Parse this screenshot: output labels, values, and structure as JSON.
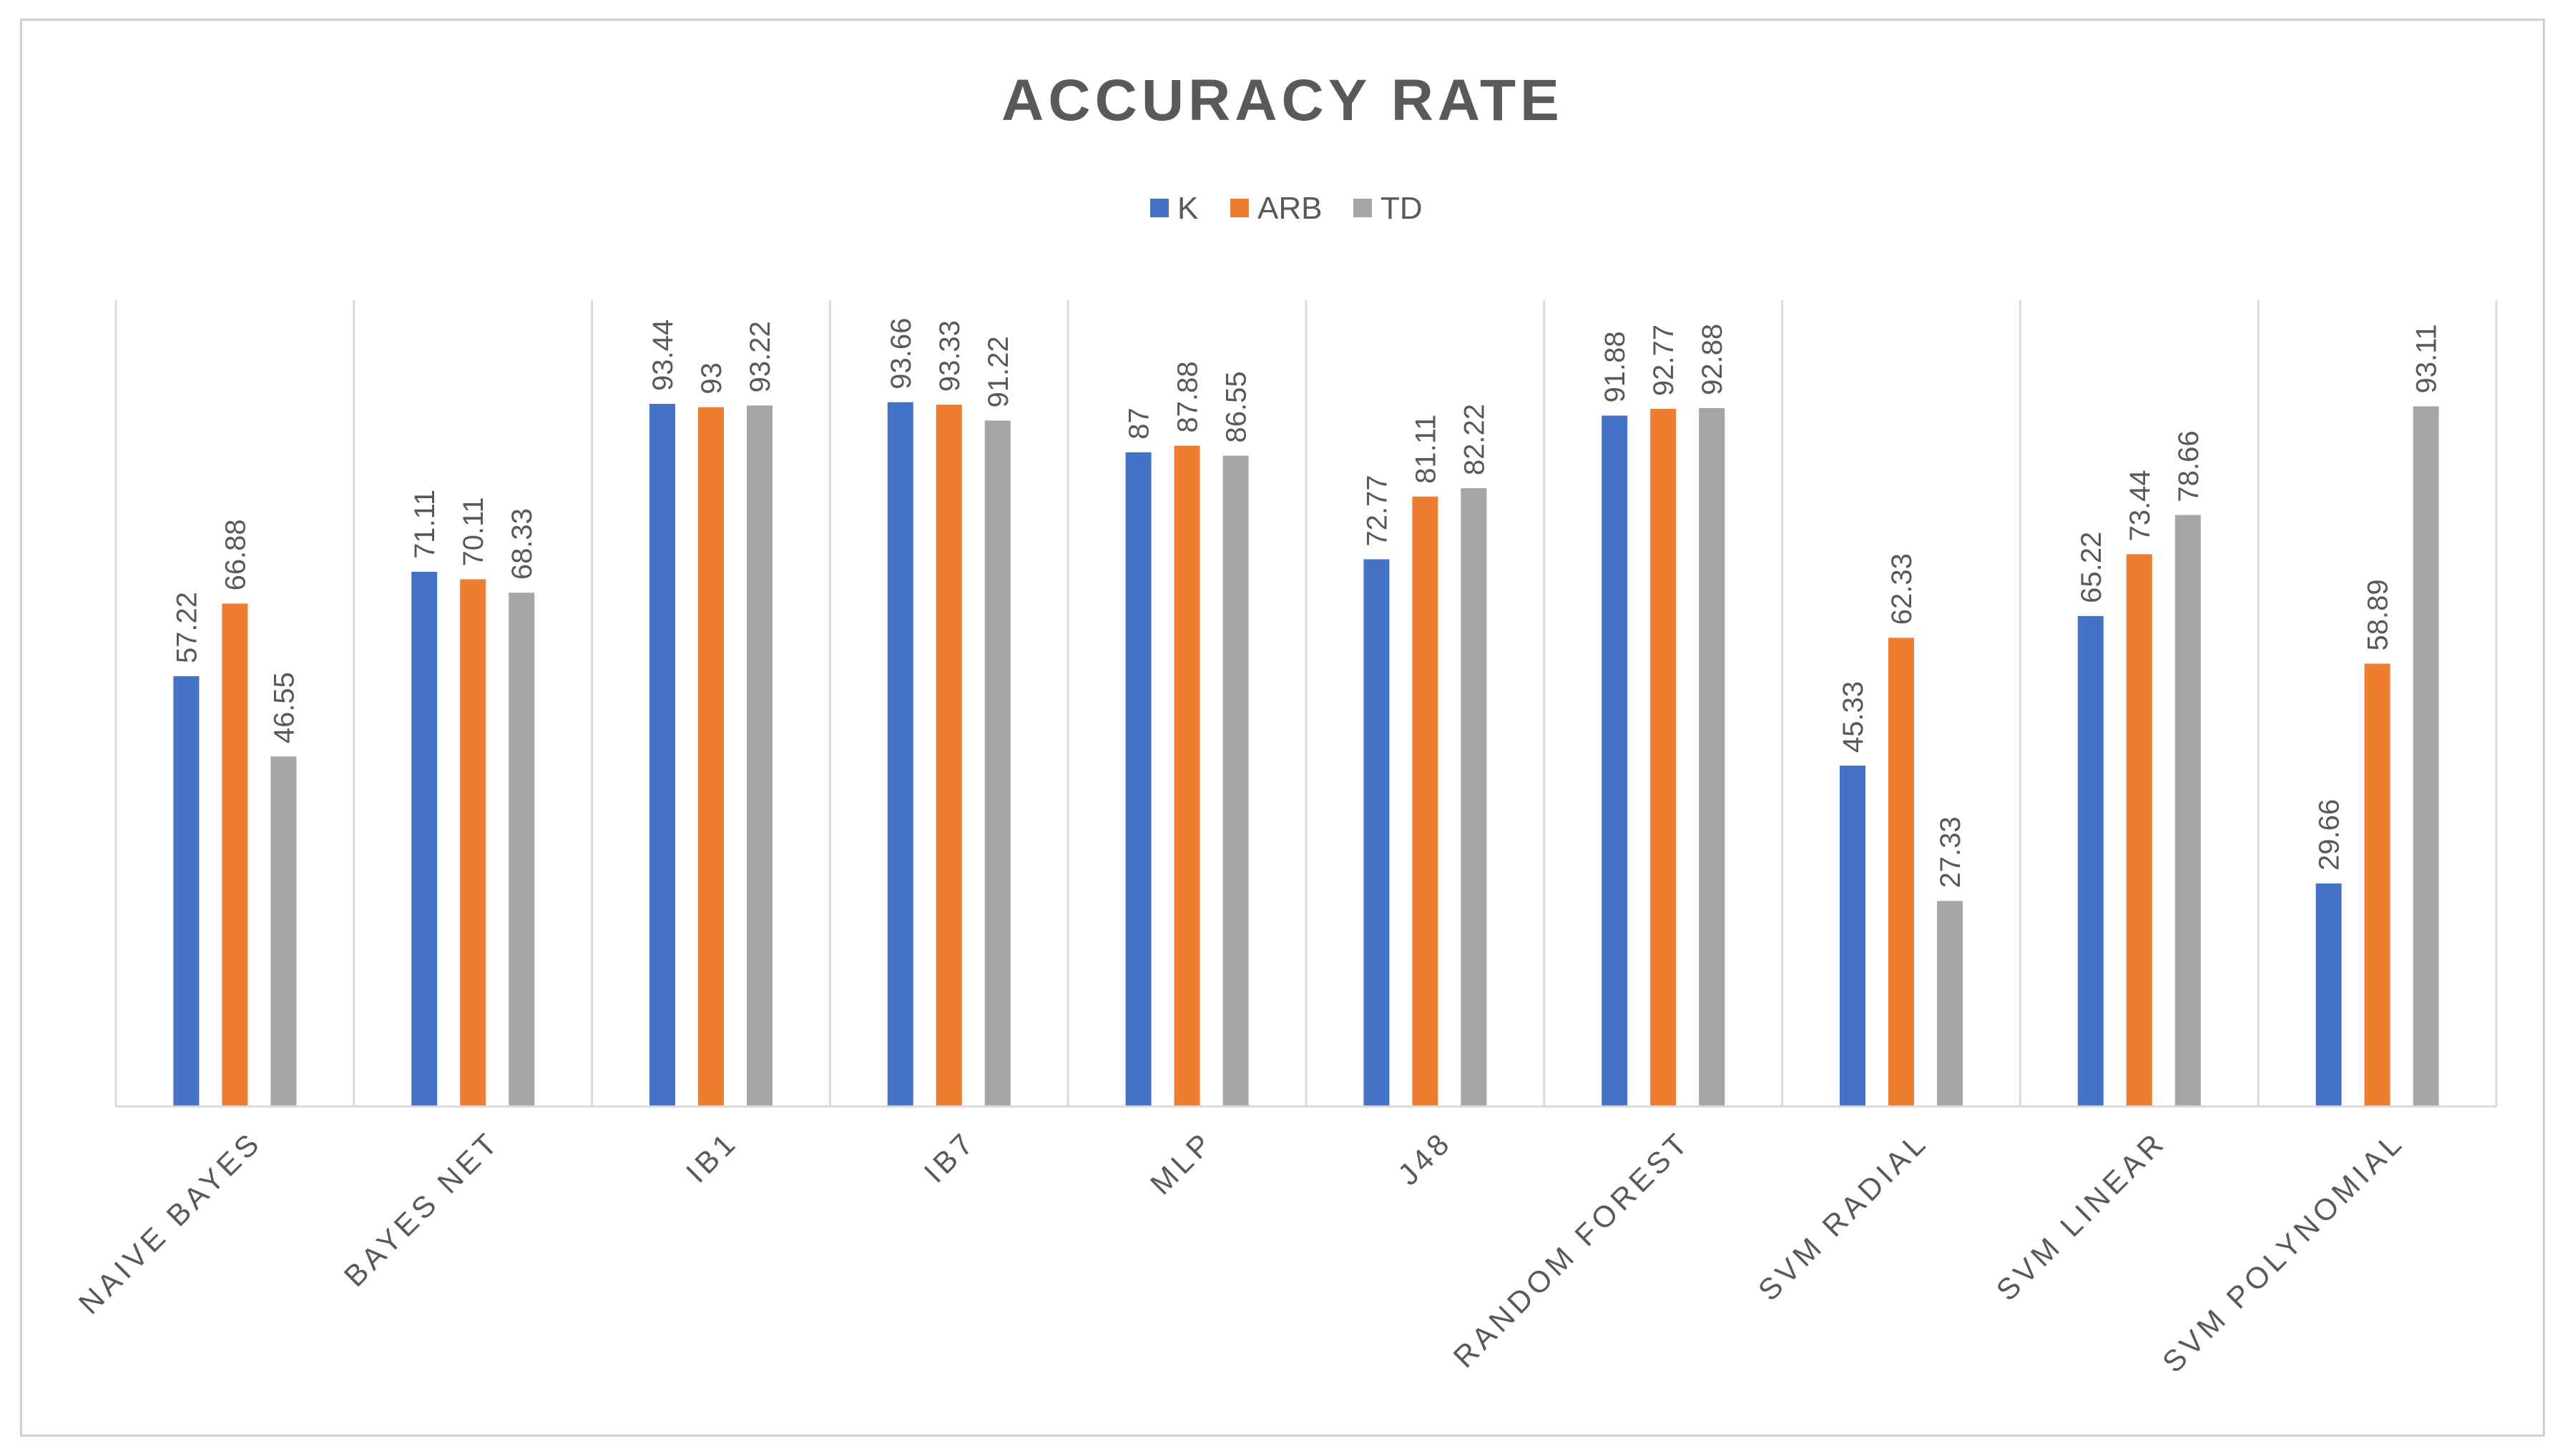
{
  "chart_data": {
    "type": "bar",
    "title": "ACCURACY RATE",
    "categories": [
      "NAIVE BAYES",
      "BAYES NET",
      "IB1",
      "IB7",
      "MLP",
      "J48",
      "RANDOM FOREST",
      "SVM RADIAL",
      "SVM LINEAR",
      "SVM POLYNOMIAL"
    ],
    "series": [
      {
        "name": "K",
        "color": "#4472C4",
        "values": [
          57.22,
          71.11,
          93.44,
          93.66,
          87,
          72.77,
          91.88,
          45.33,
          65.22,
          29.66
        ]
      },
      {
        "name": "ARB",
        "color": "#ED7D31",
        "values": [
          66.88,
          70.11,
          93,
          93.33,
          87.88,
          81.11,
          92.77,
          62.33,
          73.44,
          58.89
        ]
      },
      {
        "name": "TD",
        "color": "#A5A5A5",
        "values": [
          46.55,
          68.33,
          93.22,
          91.22,
          86.55,
          82.22,
          92.88,
          27.33,
          78.66,
          93.11
        ]
      }
    ],
    "ylim": [
      0,
      100
    ],
    "xlabel": "",
    "ylabel": "",
    "legend": "top-center",
    "grid": "vertical-category-separators"
  }
}
